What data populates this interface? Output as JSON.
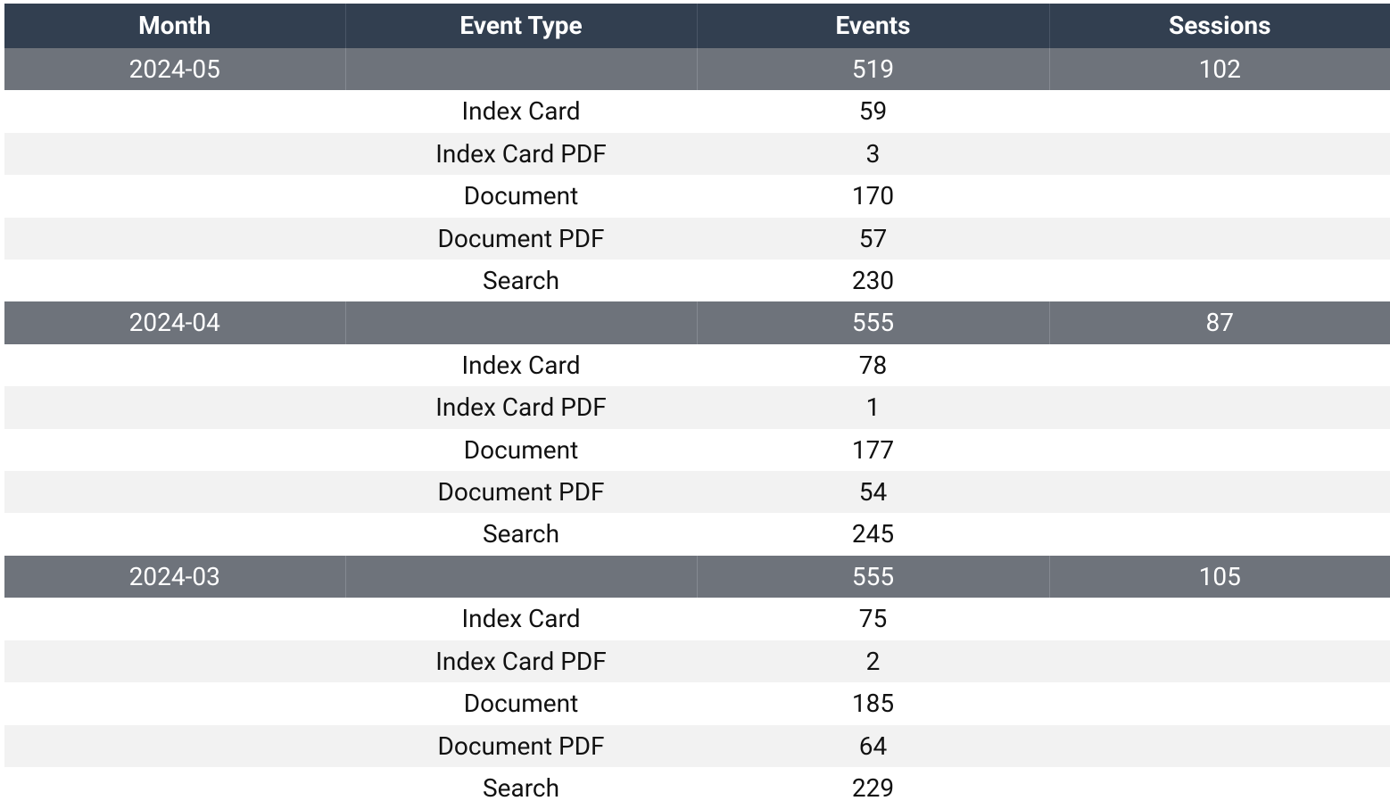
{
  "table": {
    "columns": [
      "Month",
      "Event Type",
      "Events",
      "Sessions"
    ],
    "groups": [
      {
        "month": "2024-05",
        "events": 519,
        "sessions": 102,
        "rows": [
          {
            "type": "Index Card",
            "events": 59
          },
          {
            "type": "Index Card PDF",
            "events": 3
          },
          {
            "type": "Document",
            "events": 170
          },
          {
            "type": "Document PDF",
            "events": 57
          },
          {
            "type": "Search",
            "events": 230
          }
        ]
      },
      {
        "month": "2024-04",
        "events": 555,
        "sessions": 87,
        "rows": [
          {
            "type": "Index Card",
            "events": 78
          },
          {
            "type": "Index Card PDF",
            "events": 1
          },
          {
            "type": "Document",
            "events": 177
          },
          {
            "type": "Document PDF",
            "events": 54
          },
          {
            "type": "Search",
            "events": 245
          }
        ]
      },
      {
        "month": "2024-03",
        "events": 555,
        "sessions": 105,
        "rows": [
          {
            "type": "Index Card",
            "events": 75
          },
          {
            "type": "Index Card PDF",
            "events": 2
          },
          {
            "type": "Document",
            "events": 185
          },
          {
            "type": "Document PDF",
            "events": 64
          },
          {
            "type": "Search",
            "events": 229
          }
        ]
      }
    ]
  }
}
